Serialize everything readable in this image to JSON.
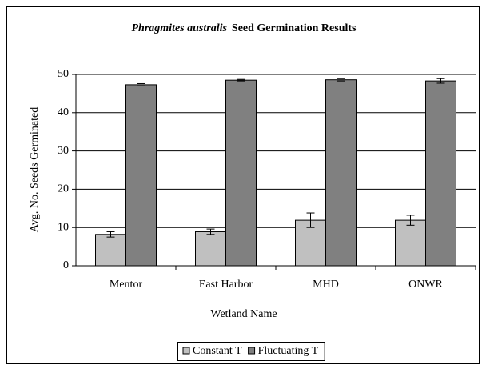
{
  "chart_data": {
    "type": "bar",
    "title": [
      "Phragmites australis",
      "Seed Germination Results"
    ],
    "x_label": "Wetland Name",
    "y_label": "Avg. No. Seeds Germinated",
    "categories": [
      "Mentor",
      "East Harbor",
      "MHD",
      "ONWR"
    ],
    "series": [
      {
        "name": "Constant T",
        "color": "#c0c0c0",
        "values": [
          8.2,
          8.9,
          11.9,
          11.9
        ],
        "errors": [
          0.7,
          0.7,
          1.9,
          1.3
        ]
      },
      {
        "name": "Fluctuating T",
        "color": "#808080",
        "values": [
          47.3,
          48.5,
          48.6,
          48.3
        ],
        "errors": [
          0.3,
          0.2,
          0.3,
          0.6
        ]
      }
    ],
    "ylim": [
      0,
      50
    ],
    "yticks": [
      0,
      10,
      20,
      30,
      40,
      50
    ],
    "grid": true,
    "legend": "bottom"
  }
}
